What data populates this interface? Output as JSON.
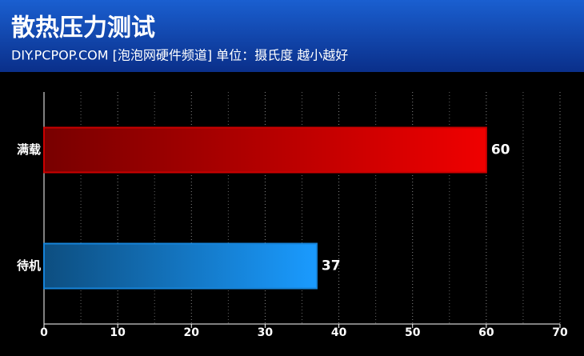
{
  "chart_data": {
    "type": "barh",
    "title": "散热压力测试",
    "subtitle": "DIY.PCPOP.COM [泡泡网硬件频道] 单位：摄氏度 越小越好",
    "categories": [
      "满载",
      "待机"
    ],
    "values": [
      60,
      37
    ],
    "colors": [
      "#f00000",
      "#1a9bff"
    ],
    "xlim": [
      0,
      70
    ],
    "xticks": [
      0,
      10,
      20,
      30,
      40,
      50,
      60,
      70
    ],
    "minor_xticks": [
      5,
      15,
      25,
      35,
      45,
      55,
      65
    ],
    "grid": true
  }
}
